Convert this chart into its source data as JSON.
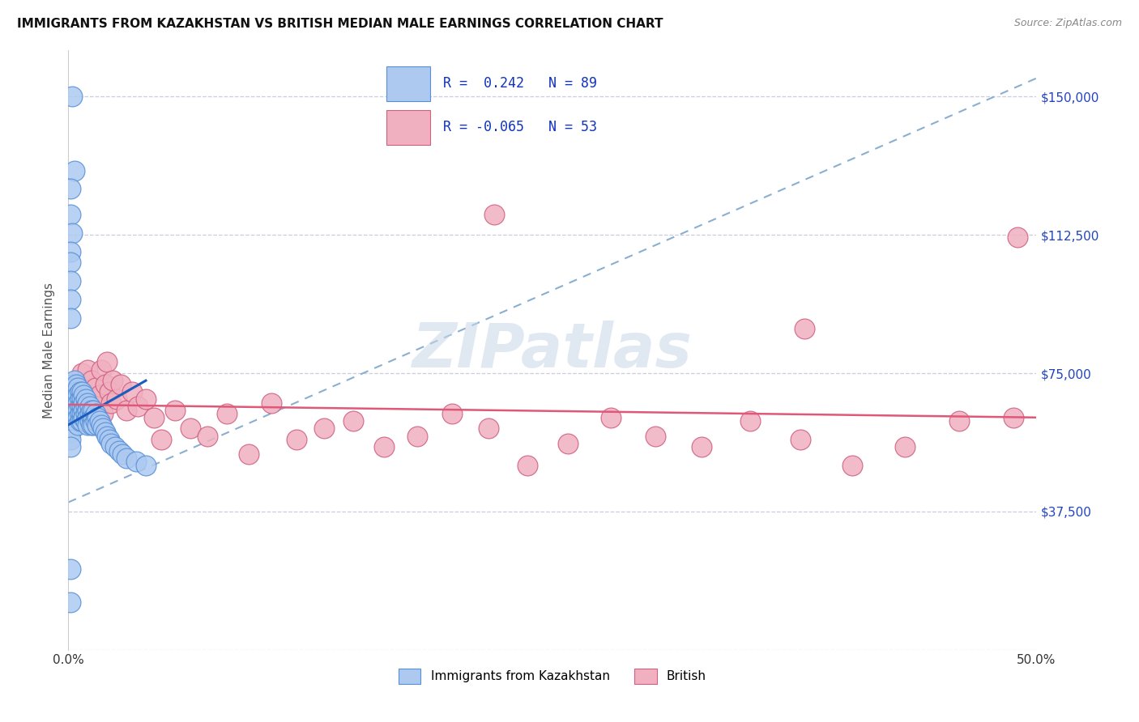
{
  "title": "IMMIGRANTS FROM KAZAKHSTAN VS BRITISH MEDIAN MALE EARNINGS CORRELATION CHART",
  "source": "Source: ZipAtlas.com",
  "ylabel": "Median Male Earnings",
  "xlim": [
    0.0,
    0.5
  ],
  "ylim": [
    0,
    162500
  ],
  "yticks": [
    0,
    37500,
    75000,
    112500,
    150000
  ],
  "right_ytick_labels": [
    "",
    "$37,500",
    "$75,000",
    "$112,500",
    "$150,000"
  ],
  "xticks": [
    0.0,
    0.1,
    0.2,
    0.3,
    0.4,
    0.5
  ],
  "xtick_labels": [
    "0.0%",
    "",
    "",
    "",
    "",
    "50.0%"
  ],
  "legend_label1": "Immigrants from Kazakhstan",
  "legend_label2": "British",
  "legend_r1_text": "R =  0.242   N = 89",
  "legend_r2_text": "R = -0.065   N = 53",
  "blue_fill": "#adc9f0",
  "blue_edge": "#5590d8",
  "pink_fill": "#f0b0c0",
  "pink_edge": "#d06080",
  "trend_blue": "#1a5cbf",
  "trend_dash": "#8aafd0",
  "trend_pink": "#e05878",
  "grid_color": "#ccccdd",
  "bg_color": "#ffffff",
  "watermark": "ZIPatlas",
  "blue_n": 89,
  "pink_n": 53,
  "blue_r": 0.242,
  "pink_r": -0.065,
  "blue_x": [
    0.001,
    0.001,
    0.001,
    0.001,
    0.001,
    0.001,
    0.001,
    0.002,
    0.002,
    0.002,
    0.002,
    0.002,
    0.003,
    0.003,
    0.003,
    0.003,
    0.003,
    0.003,
    0.004,
    0.004,
    0.004,
    0.004,
    0.004,
    0.005,
    0.005,
    0.005,
    0.005,
    0.005,
    0.005,
    0.006,
    0.006,
    0.006,
    0.006,
    0.006,
    0.007,
    0.007,
    0.007,
    0.007,
    0.007,
    0.008,
    0.008,
    0.008,
    0.008,
    0.009,
    0.009,
    0.009,
    0.009,
    0.01,
    0.01,
    0.01,
    0.01,
    0.011,
    0.011,
    0.011,
    0.012,
    0.012,
    0.012,
    0.013,
    0.013,
    0.013,
    0.014,
    0.014,
    0.015,
    0.015,
    0.016,
    0.017,
    0.018,
    0.019,
    0.02,
    0.021,
    0.022,
    0.024,
    0.026,
    0.028,
    0.03,
    0.035,
    0.04,
    0.002,
    0.003,
    0.001,
    0.001,
    0.002,
    0.001,
    0.001,
    0.001,
    0.001,
    0.001,
    0.001,
    0.001
  ],
  "blue_y": [
    67000,
    65000,
    63000,
    61000,
    59000,
    57000,
    55000,
    72000,
    70000,
    68000,
    66000,
    64000,
    73000,
    71000,
    69000,
    67000,
    65000,
    63000,
    72000,
    70000,
    68000,
    66000,
    64000,
    71000,
    69000,
    67000,
    65000,
    63000,
    61000,
    70000,
    68000,
    66000,
    64000,
    62000,
    70000,
    68000,
    66000,
    64000,
    62000,
    69000,
    67000,
    65000,
    63000,
    68000,
    66000,
    64000,
    62000,
    67000,
    65000,
    63000,
    61000,
    66000,
    64000,
    62000,
    65000,
    63000,
    61000,
    65000,
    63000,
    61000,
    64000,
    62000,
    63000,
    61000,
    62000,
    61000,
    60000,
    59000,
    58000,
    57000,
    56000,
    55000,
    54000,
    53000,
    52000,
    51000,
    50000,
    150000,
    130000,
    125000,
    118000,
    113000,
    108000,
    105000,
    100000,
    95000,
    90000,
    22000,
    13000
  ],
  "pink_x": [
    0.005,
    0.007,
    0.008,
    0.009,
    0.01,
    0.011,
    0.012,
    0.013,
    0.014,
    0.015,
    0.016,
    0.017,
    0.018,
    0.019,
    0.02,
    0.021,
    0.022,
    0.023,
    0.025,
    0.027,
    0.03,
    0.033,
    0.036,
    0.04,
    0.044,
    0.048,
    0.055,
    0.063,
    0.072,
    0.082,
    0.093,
    0.105,
    0.118,
    0.132,
    0.147,
    0.163,
    0.18,
    0.198,
    0.217,
    0.237,
    0.258,
    0.28,
    0.303,
    0.327,
    0.352,
    0.378,
    0.405,
    0.432,
    0.46,
    0.488,
    0.22,
    0.49,
    0.38
  ],
  "pink_y": [
    72000,
    75000,
    70000,
    68000,
    76000,
    65000,
    73000,
    68000,
    71000,
    66000,
    69000,
    76000,
    64000,
    72000,
    78000,
    70000,
    67000,
    73000,
    68000,
    72000,
    65000,
    70000,
    66000,
    68000,
    63000,
    57000,
    65000,
    60000,
    58000,
    64000,
    53000,
    67000,
    57000,
    60000,
    62000,
    55000,
    58000,
    64000,
    60000,
    50000,
    56000,
    63000,
    58000,
    55000,
    62000,
    57000,
    50000,
    55000,
    62000,
    63000,
    118000,
    112000,
    87000
  ],
  "blue_trend_x": [
    0.0,
    0.04
  ],
  "blue_trend_y": [
    61000,
    73000
  ],
  "dash_trend_x": [
    0.0,
    0.5
  ],
  "dash_trend_y": [
    40000,
    155000
  ],
  "pink_trend_x": [
    0.0,
    0.5
  ],
  "pink_trend_y": [
    66500,
    63000
  ]
}
